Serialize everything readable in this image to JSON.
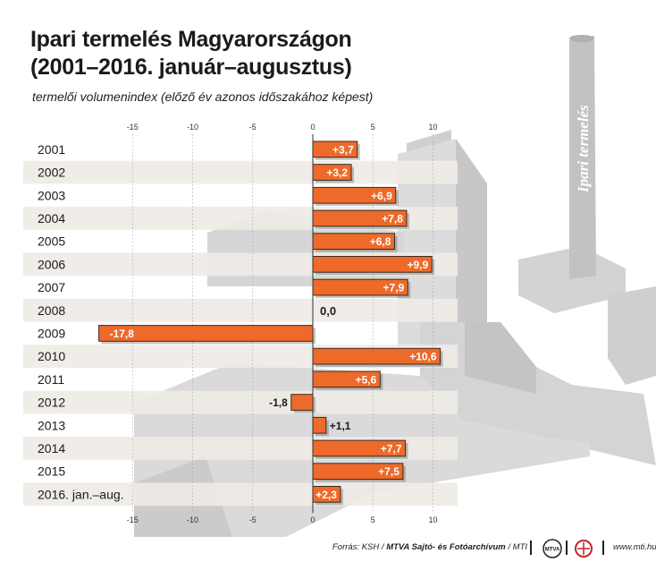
{
  "title_line1": "Ipari termelés Magyarországon",
  "title_line2": "(2001–2016. január–augusztus)",
  "subtitle": "termelői volumenindex (előző év azonos időszakához képest)",
  "chimney_text": "Ipari termelés",
  "footer": {
    "source_prefix": "Forrás: KSH / ",
    "source_bold": "MTVA Sajtó- és Fotóarchívum",
    "source_suffix": " / MTI",
    "logo1_text": "MTVA",
    "url": "www.mti.hu"
  },
  "colors": {
    "bar": "#ee6a2a",
    "bar_border": "#3a2a20",
    "band": "#efece6",
    "building": "#d9d9d9"
  },
  "chart_data": {
    "type": "bar",
    "orientation": "horizontal",
    "categories": [
      "2001",
      "2002",
      "2003",
      "2004",
      "2005",
      "2006",
      "2007",
      "2008",
      "2009",
      "2010",
      "2011",
      "2012",
      "2013",
      "2014",
      "2015",
      "2016. jan.–aug."
    ],
    "values": [
      3.7,
      3.2,
      6.9,
      7.8,
      6.8,
      9.9,
      7.9,
      0.0,
      -17.8,
      10.6,
      5.6,
      -1.8,
      1.1,
      7.7,
      7.5,
      2.3
    ],
    "labels": [
      "+3,7",
      "+3,2",
      "+6,9",
      "+7,8",
      "+6,8",
      "+9,9",
      "+7,9",
      "0,0",
      "-17,8",
      "+10,6",
      "+5,6",
      "-1,8",
      "+1,1",
      "+7,7",
      "+7,5",
      "+2,3"
    ],
    "ticks": [
      -15,
      -10,
      -5,
      0,
      5,
      10
    ],
    "tick_labels": [
      "-15",
      "-10",
      "-5",
      "0",
      "5",
      "10"
    ],
    "xlim": [
      -18.5,
      11.5
    ],
    "grid": true
  }
}
